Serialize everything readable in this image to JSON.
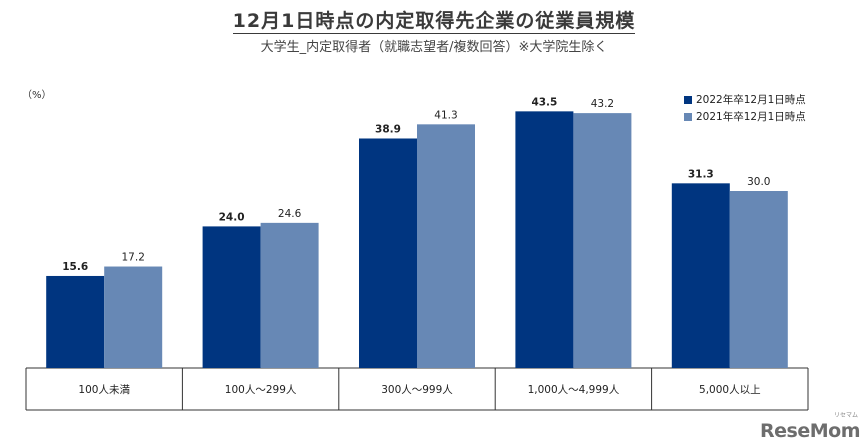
{
  "title": "12月1日時点の内定取得先企業の従業員規模",
  "subtitle": "大学生_内定取得者（就職志望者/複数回答）※大学院生除く",
  "logo": "ReseMom",
  "logo_sub": "リセマム",
  "colors": {
    "series_2022": "#003580",
    "series_2021": "#6788b5",
    "axis": "#333333"
  },
  "chart_data": {
    "type": "bar",
    "unit_label": "（%）",
    "categories": [
      "100人未満",
      "100人～299人",
      "300人～999人",
      "1,000人～4,999人",
      "5,000人以上"
    ],
    "series": [
      {
        "name": "2022年卒12月1日時点",
        "values": [
          15.6,
          24.0,
          38.9,
          43.5,
          31.3
        ]
      },
      {
        "name": "2021年卒12月1日時点",
        "values": [
          17.2,
          24.6,
          41.3,
          43.2,
          30.0
        ]
      }
    ],
    "ylim": [
      0,
      50
    ],
    "grid": false,
    "legend_position": "top-right",
    "data_labels": true
  }
}
